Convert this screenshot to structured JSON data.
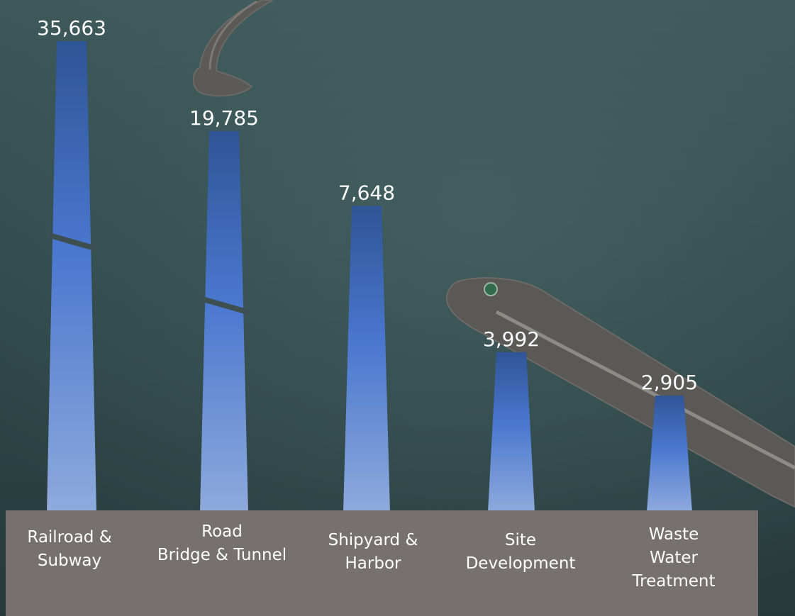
{
  "chart_data": {
    "type": "bar",
    "categories": [
      "Railroad &\nSubway",
      "Road\nBridge & Tunnel",
      "Shipyard &\nHarbor",
      "Site\nDevelopment",
      "Waste\nWater\nTreatment"
    ],
    "values": [
      35663,
      19785,
      7648,
      3992,
      2905
    ],
    "value_labels": [
      "35,663",
      "19,785",
      "7,648",
      "3,992",
      "2,905"
    ],
    "axis_breaks": [
      true,
      true,
      false,
      false,
      false
    ],
    "title": "",
    "xlabel": "",
    "ylabel": "",
    "grid": false,
    "legend": "none"
  },
  "colors": {
    "bar_top": "#2f5597",
    "bar_mid": "#4a78cf",
    "bar_bottom": "#8faadc",
    "label_panel": "#767070",
    "text": "#ffffff"
  }
}
